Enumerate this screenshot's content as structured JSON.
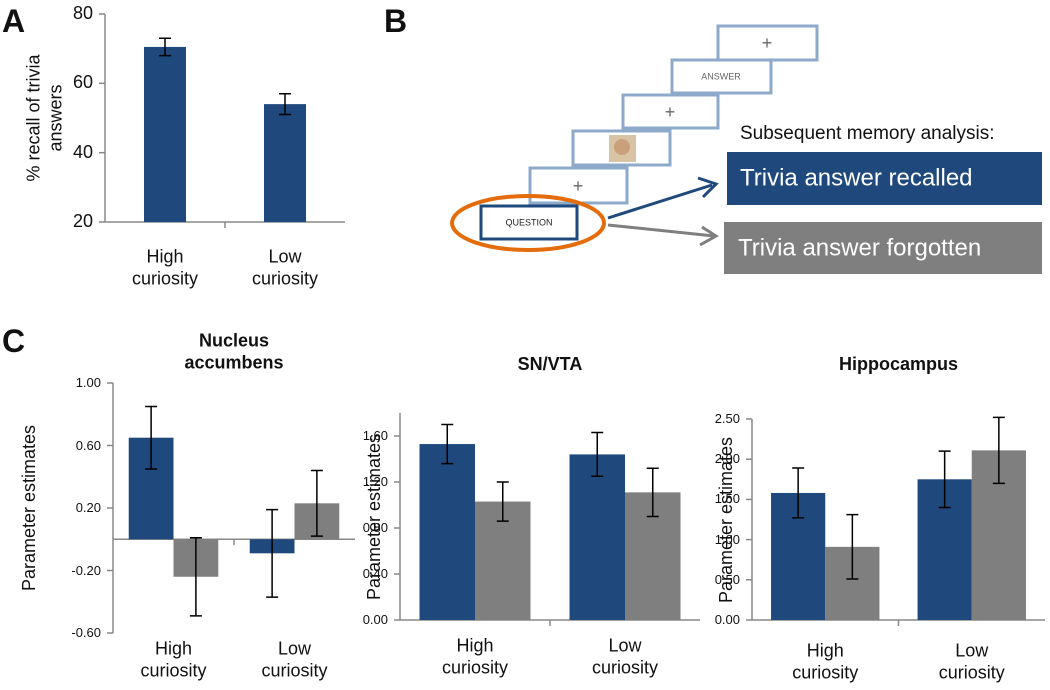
{
  "panel_labels": [
    "A",
    "B",
    "C"
  ],
  "diagram": {
    "screens": [
      "+",
      "ANSWER",
      "+",
      "+",
      "QUESTION"
    ],
    "analysis_title": "Subsequent memory analysis:",
    "outcomes": [
      "Trivia answer recalled",
      "Trivia answer forgotten"
    ]
  },
  "chart_data": [
    {
      "type": "bar",
      "ylabel": "% recall of trivia answers",
      "categories": [
        "High curiosity",
        "Low curiosity"
      ],
      "values": [
        70.5,
        54
      ],
      "errors": [
        2.5,
        3
      ],
      "color": "#1f497d",
      "ylim": [
        20,
        80
      ],
      "yticks": [
        20,
        40,
        60,
        80
      ]
    },
    {
      "type": "bar",
      "title": "Nucleus accumbens",
      "ylabel": "Parameter estimates",
      "categories": [
        "High curiosity",
        "Low curiosity"
      ],
      "series": [
        {
          "color": "#1f497d",
          "values": [
            0.65,
            -0.09
          ],
          "errors": [
            0.2,
            0.28
          ]
        },
        {
          "color": "#7f7f7f",
          "values": [
            -0.24,
            0.23
          ],
          "errors": [
            0.25,
            0.21
          ]
        }
      ],
      "ylim": [
        -0.6,
        1.0
      ],
      "yticks": [
        {
          "value": -0.6,
          "label": "-0.60"
        },
        {
          "value": -0.2,
          "label": "-0.20"
        },
        {
          "value": 0.2,
          "label": "0.20"
        },
        {
          "value": 0.6,
          "label": "0.60"
        },
        {
          "value": 1.0,
          "label": "1.00"
        }
      ]
    },
    {
      "type": "bar",
      "title": "SN/VTA",
      "ylabel": "Parameter estimates",
      "categories": [
        "High curiosity",
        "Low curiosity"
      ],
      "series": [
        {
          "color": "#1f497d",
          "values": [
            1.53,
            1.44
          ],
          "errors": [
            0.17,
            0.19
          ]
        },
        {
          "color": "#7f7f7f",
          "values": [
            1.03,
            1.11
          ],
          "errors": [
            0.17,
            0.21
          ]
        }
      ],
      "ylim": [
        0,
        1.8
      ],
      "yticks": [
        {
          "value": 0,
          "label": "0.00"
        },
        {
          "value": 0.4,
          "label": "0.40"
        },
        {
          "value": 0.8,
          "label": "0.80"
        },
        {
          "value": 1.2,
          "label": "1.20"
        },
        {
          "value": 1.6,
          "label": "1.60"
        }
      ]
    },
    {
      "type": "bar",
      "title": "Hippocampus",
      "ylabel": "Parameter estimates",
      "categories": [
        "High curiosity",
        "Low curiosity"
      ],
      "series": [
        {
          "color": "#1f497d",
          "values": [
            1.58,
            1.75
          ],
          "errors": [
            0.31,
            0.35
          ]
        },
        {
          "color": "#7f7f7f",
          "values": [
            0.91,
            2.11
          ],
          "errors": [
            0.4,
            0.41
          ]
        }
      ],
      "ylim": [
        0,
        2.5
      ],
      "yticks": [
        {
          "value": 0,
          "label": "0.00"
        },
        {
          "value": 0.5,
          "label": "0.50"
        },
        {
          "value": 1.0,
          "label": "1.00"
        },
        {
          "value": 1.5,
          "label": "1.50"
        },
        {
          "value": 2.0,
          "label": "2.00"
        },
        {
          "value": 2.5,
          "label": "2.50"
        }
      ]
    }
  ]
}
